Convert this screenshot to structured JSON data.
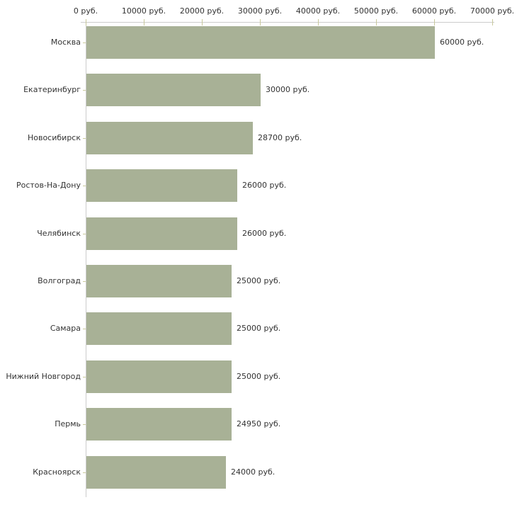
{
  "chart_data": {
    "type": "bar",
    "orientation": "horizontal",
    "title": "",
    "xlabel": "",
    "ylabel": "",
    "grid": false,
    "legend": false,
    "categories": [
      "Москва",
      "Екатеринбург",
      "Новосибирск",
      "Ростов-На-Дону",
      "Челябинск",
      "Волгоград",
      "Самара",
      "Нижний Новгород",
      "Пермь",
      "Красноярск"
    ],
    "values": [
      60000,
      30000,
      28700,
      26000,
      26000,
      25000,
      25000,
      25000,
      24950,
      24000
    ],
    "value_labels": [
      "60000 руб.",
      "30000 руб.",
      "28700 руб.",
      "26000 руб.",
      "26000 руб.",
      "25000 руб.",
      "25000 руб.",
      "25000 руб.",
      "24950 руб.",
      "24000 руб."
    ],
    "x_axis": {
      "position": "top",
      "min": 0,
      "max": 70000,
      "ticks": [
        0,
        10000,
        20000,
        30000,
        40000,
        50000,
        60000,
        70000
      ],
      "tick_labels": [
        "0 руб.",
        "10000 руб.",
        "20000 руб.",
        "30000 руб.",
        "40000 руб.",
        "50000 руб.",
        "60000 руб.",
        "70000 руб."
      ],
      "unit": "руб."
    },
    "colors": {
      "bar": "#a8b196",
      "axis": "#cccccc",
      "tick": "#c9c99c",
      "text": "#333333",
      "background": "#ffffff"
    }
  }
}
